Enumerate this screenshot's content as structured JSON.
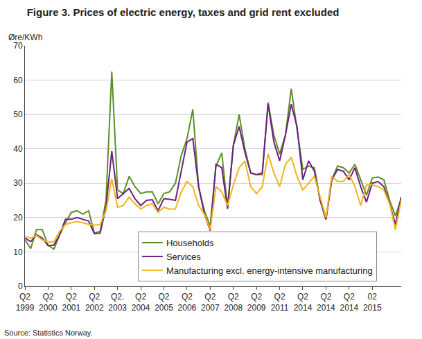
{
  "chart_data": {
    "type": "line",
    "title": "Figure 3. Prices of electric energy, taxes and grid rent excluded",
    "y_label": "Øre/KWh",
    "source": "Source: Statistics Norway.",
    "categories": [
      "Q2 1999",
      null,
      null,
      null,
      "Q2 2000",
      null,
      null,
      null,
      "Q2 2001",
      null,
      null,
      null,
      "Q2 2002",
      null,
      null,
      null,
      "Q2. 2003",
      null,
      null,
      null,
      "Q2 2004",
      null,
      null,
      null,
      "Q2 2005",
      null,
      null,
      null,
      "Q2 2006",
      null,
      null,
      null,
      "Q2 2007",
      null,
      null,
      null,
      "Q2 2008",
      null,
      null,
      null,
      "Q2 2009",
      null,
      null,
      null,
      "Q2 2011",
      null,
      null,
      null,
      "Q2 2014",
      null,
      null,
      null,
      "Q2 2014",
      null,
      null,
      null,
      "Q2 2014",
      null,
      null,
      null,
      "02 2015",
      null,
      null,
      null,
      null,
      null
    ],
    "series": [
      {
        "name": "Households",
        "color": "#5b8f22",
        "values": [
          13.5,
          11,
          16.5,
          16.5,
          12,
          10.8,
          15,
          18.5,
          21.5,
          22,
          21,
          22,
          15.5,
          16,
          25,
          62.5,
          28,
          27,
          32,
          29,
          27,
          27.5,
          27.5,
          24,
          27,
          27.5,
          30,
          38,
          43,
          51.5,
          29,
          22,
          17.5,
          35,
          38.8,
          23,
          41,
          50,
          40,
          33,
          32.5,
          32.5,
          53.5,
          44,
          38.5,
          44,
          57.5,
          46,
          34,
          35,
          34.5,
          25,
          19.5,
          31,
          35,
          34.5,
          33,
          35.5,
          31,
          26.5,
          31.5,
          31.8,
          31,
          25,
          20.5,
          25.5
        ]
      },
      {
        "name": "Services",
        "color": "#6b1f86",
        "values": [
          14,
          13,
          15,
          14,
          11.8,
          12,
          15,
          19.5,
          19.5,
          20,
          19.5,
          19,
          15.3,
          15.5,
          23,
          39.3,
          25.5,
          27,
          28.5,
          25.5,
          23.5,
          25,
          25.2,
          22,
          25.5,
          25.3,
          25,
          33.5,
          42,
          43,
          29,
          21,
          16.2,
          35.5,
          34.5,
          22.5,
          41,
          46.5,
          39,
          33,
          32.5,
          33,
          53,
          42,
          36.5,
          44,
          53,
          46.5,
          31,
          36.5,
          33.5,
          25,
          19.5,
          31,
          34,
          33.5,
          31,
          34.5,
          29,
          24.5,
          30,
          30.5,
          29,
          24,
          18,
          26
        ]
      },
      {
        "name": "Manufacturing excl. energy-intensive manufacturing",
        "color": "#f2b418",
        "values": [
          14.5,
          14,
          14.8,
          13.5,
          12.8,
          13,
          16,
          18,
          18.5,
          18.8,
          18.5,
          18,
          17.8,
          18,
          22,
          31.3,
          23,
          23.5,
          26,
          24,
          22.5,
          23.5,
          24,
          21.5,
          23,
          22.5,
          22.5,
          27.5,
          30.5,
          29,
          23.5,
          21,
          16.5,
          29,
          27.5,
          23.5,
          29.5,
          34.5,
          36.5,
          29,
          27,
          29,
          38.5,
          33,
          29,
          35.5,
          37.5,
          32,
          28,
          30,
          32,
          26,
          20,
          32,
          30.5,
          30.5,
          32.5,
          29,
          23.5,
          29.5,
          29.5,
          29,
          28,
          24,
          16.5,
          25
        ]
      }
    ],
    "ylim": [
      0,
      70
    ],
    "yticks": [
      0,
      10,
      20,
      30,
      40,
      50,
      60,
      70
    ],
    "grid": true,
    "legend": "bottom"
  }
}
